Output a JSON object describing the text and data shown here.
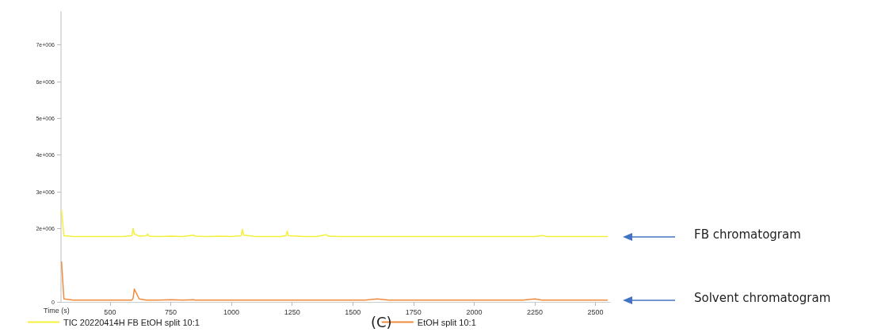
{
  "chart_data": {
    "type": "line",
    "xlabel": "Time (s)",
    "x": [
      300,
      310,
      350,
      400,
      450,
      500,
      550,
      590,
      595,
      600,
      620,
      650,
      655,
      660,
      700,
      750,
      800,
      845,
      850,
      900,
      950,
      1000,
      1040,
      1045,
      1050,
      1100,
      1150,
      1200,
      1225,
      1230,
      1235,
      1300,
      1350,
      1390,
      1400,
      1450,
      1500,
      1550,
      1600,
      1650,
      1700,
      1750,
      1800,
      1850,
      1900,
      1950,
      2000,
      2050,
      2100,
      2150,
      2200,
      2250,
      2280,
      2300,
      2350,
      2400,
      2450,
      2500,
      2550
    ],
    "series": [
      {
        "name": "TIC 20220414H FB EtOH split 10:1",
        "color": "#f5f03a",
        "values": [
          2500000,
          1800000,
          1780000,
          1780000,
          1780000,
          1780000,
          1780000,
          1800000,
          2000000,
          1850000,
          1790000,
          1800000,
          1850000,
          1790000,
          1780000,
          1790000,
          1780000,
          1820000,
          1790000,
          1780000,
          1790000,
          1780000,
          1800000,
          1980000,
          1820000,
          1780000,
          1780000,
          1780000,
          1800000,
          1930000,
          1800000,
          1780000,
          1780000,
          1830000,
          1790000,
          1780000,
          1780000,
          1780000,
          1780000,
          1780000,
          1780000,
          1780000,
          1780000,
          1780000,
          1780000,
          1780000,
          1780000,
          1780000,
          1780000,
          1780000,
          1780000,
          1780000,
          1810000,
          1780000,
          1780000,
          1780000,
          1780000,
          1780000,
          1780000
        ]
      },
      {
        "name": "EtOH split 10:1",
        "color": "#f08a3c",
        "values": [
          1100000,
          80000,
          50000,
          50000,
          50000,
          50000,
          50000,
          50000,
          100000,
          350000,
          80000,
          50000,
          50000,
          50000,
          50000,
          60000,
          50000,
          60000,
          50000,
          50000,
          50000,
          50000,
          50000,
          50000,
          50000,
          50000,
          50000,
          50000,
          50000,
          50000,
          50000,
          50000,
          50000,
          50000,
          50000,
          50000,
          50000,
          50000,
          80000,
          50000,
          50000,
          50000,
          50000,
          50000,
          50000,
          50000,
          50000,
          50000,
          50000,
          50000,
          50000,
          80000,
          50000,
          50000,
          50000,
          50000,
          50000,
          50000,
          50000
        ]
      }
    ],
    "xlim": [
      298,
      2560
    ],
    "xticks": [
      500,
      750,
      1000,
      1250,
      1500,
      1750,
      2000,
      2250,
      2500
    ],
    "ylim": [
      0,
      7900000
    ],
    "yticks": [
      0,
      {
        "value": 2000000,
        "label": "2e+006"
      },
      {
        "value": 3000000,
        "label": "3e+006"
      },
      {
        "value": 4000000,
        "label": "4e+006"
      },
      {
        "value": 5000000,
        "label": "5e+006"
      },
      {
        "value": 6000000,
        "label": "6e+006"
      },
      {
        "value": 7000000,
        "label": "7e+006"
      }
    ],
    "grid": false,
    "legend": "bottom",
    "marker": "none",
    "line_style": "solid",
    "annotations": [
      "(C)",
      "FB chromatogram",
      "Solvent chromatogram"
    ]
  }
}
